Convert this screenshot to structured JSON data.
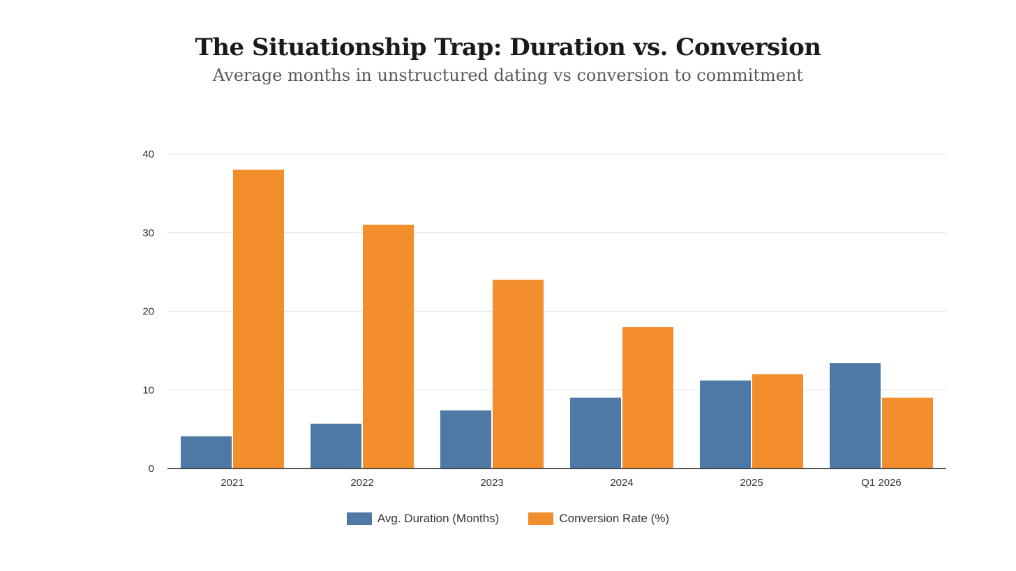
{
  "chart_data": {
    "type": "bar",
    "title": "The Situationship Trap: Duration vs. Conversion",
    "subtitle": "Average months in unstructured dating vs conversion to commitment",
    "xlabel": "",
    "ylabel": "",
    "categories": [
      "2021",
      "2022",
      "2023",
      "2024",
      "2025",
      "Q1 2026"
    ],
    "series": [
      {
        "name": "Avg. Duration (Months)",
        "color": "#4e79a7",
        "values": [
          4.1,
          5.7,
          7.4,
          9.0,
          11.2,
          13.4
        ]
      },
      {
        "name": "Conversion Rate (%)",
        "color": "#f28e2b",
        "values": [
          38,
          31,
          24,
          18,
          12,
          9
        ]
      }
    ],
    "ylim": [
      0,
      40
    ],
    "yticks": [
      0,
      10,
      20,
      30,
      40
    ],
    "grid": true,
    "legend_position": "bottom-center"
  }
}
